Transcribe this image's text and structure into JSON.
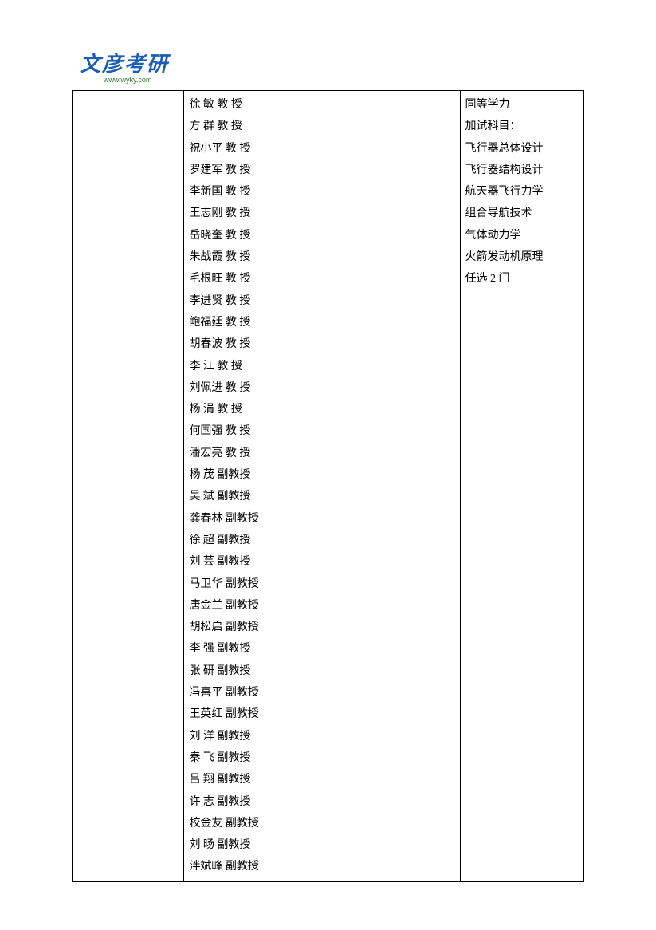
{
  "header": {
    "logo_text": "文彦考研",
    "logo_url": "www.wyky.com"
  },
  "table": {
    "col2_faculty": [
      "徐  敏 教  授",
      "方  群 教  授",
      "祝小平 教  授",
      "罗建军 教  授",
      "李新国 教  授",
      "王志刚 教  授",
      "岳晓奎 教  授",
      "朱战霞 教  授",
      "毛根旺 教  授",
      "李进贤 教  授",
      "鲍福廷 教  授",
      "胡春波 教  授",
      "李  江 教  授",
      "刘佩进 教  授",
      "杨  涓 教  授",
      "何国强 教  授",
      "潘宏亮 教  授",
      "杨  茂 副教授",
      "吴  斌 副教授",
      "龚春林 副教授",
      "徐  超 副教授",
      "刘  芸 副教授",
      "马卫华 副教授",
      "唐金兰 副教授",
      "胡松启 副教授",
      "李  强 副教授",
      "张  研 副教授",
      "冯喜平 副教授",
      "王英红 副教授",
      "刘  洋 副教授",
      "秦  飞 副教授",
      "吕  翔 副教授",
      "许  志 副教授",
      "校金友 副教授",
      "刘  旸 副教授",
      "泮斌峰 副教授"
    ],
    "col5_notes": [
      "同等学力",
      "加试科目：",
      "飞行器总体设计",
      "飞行器结构设计",
      "航天器飞行力学",
      "组合导航技术",
      "气体动力学",
      "火箭发动机原理",
      "任选 2 门"
    ]
  }
}
